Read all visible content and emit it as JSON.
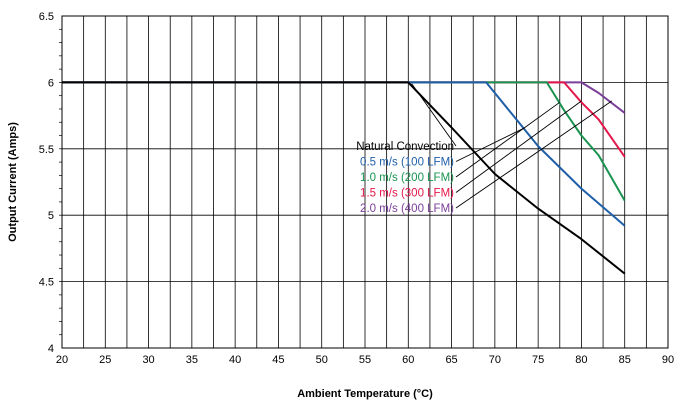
{
  "chart_data": {
    "type": "line",
    "title": "",
    "xlabel": "Ambient Temperature (°C)",
    "ylabel": "Output Current (Amps)",
    "xlim": [
      20,
      90
    ],
    "ylim": [
      4,
      6.5
    ],
    "xticks": [
      "20",
      "25",
      "30",
      "35",
      "40",
      "45",
      "50",
      "55",
      "60",
      "65",
      "70",
      "75",
      "80",
      "85",
      "90"
    ],
    "yticks": [
      "4",
      "4.5",
      "5",
      "5.5",
      "6",
      "6.5"
    ],
    "grid": true,
    "legend_placement": "inside-center-right with leader lines",
    "series": [
      {
        "name": "Natural Convection",
        "color": "#000000",
        "points": [
          [
            20,
            6.0
          ],
          [
            60,
            6.0
          ],
          [
            65,
            5.66
          ],
          [
            70,
            5.31
          ],
          [
            75,
            5.05
          ],
          [
            80,
            4.82
          ],
          [
            85,
            4.56
          ]
        ]
      },
      {
        "name": "0.5 m/s (100 LFM)",
        "color": "#1f5fa8",
        "points": [
          [
            20,
            6.0
          ],
          [
            69,
            6.0
          ],
          [
            72,
            5.76
          ],
          [
            75,
            5.52
          ],
          [
            80,
            5.2
          ],
          [
            85,
            4.92
          ]
        ]
      },
      {
        "name": "1.0 m/s (200 LFM)",
        "color": "#1a9450",
        "points": [
          [
            20,
            6.0
          ],
          [
            76,
            6.0
          ],
          [
            78,
            5.79
          ],
          [
            80,
            5.6
          ],
          [
            82,
            5.45
          ],
          [
            85,
            5.11
          ]
        ]
      },
      {
        "name": "1.5 m/s (300 LFM)",
        "color": "#e4174a",
        "points": [
          [
            20,
            6.0
          ],
          [
            78,
            6.0
          ],
          [
            80,
            5.85
          ],
          [
            82,
            5.72
          ],
          [
            85,
            5.44
          ]
        ]
      },
      {
        "name": "2.0 m/s (400 LFM)",
        "color": "#7b3f99",
        "points": [
          [
            20,
            6.0
          ],
          [
            80,
            6.0
          ],
          [
            82,
            5.92
          ],
          [
            85,
            5.77
          ]
        ]
      }
    ],
    "legend_pointers": [
      {
        "series": 0,
        "x": 60.4,
        "y": 5.99
      },
      {
        "series": 1,
        "x": 73.5,
        "y": 5.66
      },
      {
        "series": 2,
        "x": 77.5,
        "y": 5.85
      },
      {
        "series": 3,
        "x": 80.0,
        "y": 5.86
      },
      {
        "series": 4,
        "x": 83.5,
        "y": 5.86
      }
    ]
  }
}
